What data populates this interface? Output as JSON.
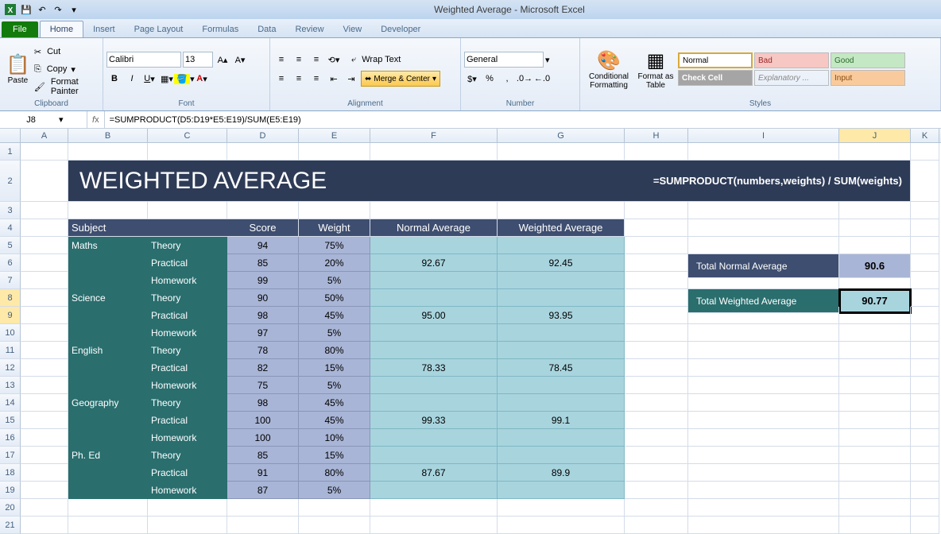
{
  "app": {
    "title": "Weighted Average - Microsoft Excel"
  },
  "tabs": {
    "file": "File",
    "home": "Home",
    "insert": "Insert",
    "page_layout": "Page Layout",
    "formulas": "Formulas",
    "data": "Data",
    "review": "Review",
    "view": "View",
    "developer": "Developer"
  },
  "ribbon": {
    "clipboard": {
      "label": "Clipboard",
      "paste": "Paste",
      "cut": "Cut",
      "copy": "Copy",
      "format_painter": "Format Painter"
    },
    "font": {
      "label": "Font",
      "name": "Calibri",
      "size": "13"
    },
    "alignment": {
      "label": "Alignment",
      "wrap": "Wrap Text",
      "merge": "Merge & Center"
    },
    "number": {
      "label": "Number",
      "format": "General"
    },
    "styles": {
      "label": "Styles",
      "cond_fmt": "Conditional Formatting",
      "fmt_table": "Format as Table",
      "normal": "Normal",
      "bad": "Bad",
      "good": "Good",
      "check": "Check Cell",
      "explan": "Explanatory ...",
      "input": "Input"
    }
  },
  "formula_bar": {
    "cell_ref": "J8",
    "formula": "=SUMPRODUCT(D5:D19*E5:E19)/SUM(E5:E19)"
  },
  "columns": [
    "A",
    "B",
    "C",
    "D",
    "E",
    "F",
    "G",
    "H",
    "I",
    "J",
    "K"
  ],
  "content": {
    "title": "WEIGHTED AVERAGE",
    "banner_formula": "=SUMPRODUCT(numbers,weights) / SUM(weights)",
    "headers": {
      "subject": "Subject",
      "score": "Score",
      "weight": "Weight",
      "navg": "Normal Average",
      "wavg": "Weighted Average"
    },
    "subjects": [
      {
        "name": "Maths",
        "rows": [
          {
            "type": "Theory",
            "score": 94,
            "weight": "75%"
          },
          {
            "type": "Practical",
            "score": 85,
            "weight": "20%"
          },
          {
            "type": "Homework",
            "score": 99,
            "weight": "5%"
          }
        ],
        "navg": "92.67",
        "wavg": "92.45"
      },
      {
        "name": "Science",
        "rows": [
          {
            "type": "Theory",
            "score": 90,
            "weight": "50%"
          },
          {
            "type": "Practical",
            "score": 98,
            "weight": "45%"
          },
          {
            "type": "Homework",
            "score": 97,
            "weight": "5%"
          }
        ],
        "navg": "95.00",
        "wavg": "93.95"
      },
      {
        "name": "English",
        "rows": [
          {
            "type": "Theory",
            "score": 78,
            "weight": "80%"
          },
          {
            "type": "Practical",
            "score": 82,
            "weight": "15%"
          },
          {
            "type": "Homework",
            "score": 75,
            "weight": "5%"
          }
        ],
        "navg": "78.33",
        "wavg": "78.45"
      },
      {
        "name": "Geography",
        "rows": [
          {
            "type": "Theory",
            "score": 98,
            "weight": "45%"
          },
          {
            "type": "Practical",
            "score": 100,
            "weight": "45%"
          },
          {
            "type": "Homework",
            "score": 100,
            "weight": "10%"
          }
        ],
        "navg": "99.33",
        "wavg": "99.1"
      },
      {
        "name": "Ph. Ed",
        "rows": [
          {
            "type": "Theory",
            "score": 85,
            "weight": "15%"
          },
          {
            "type": "Practical",
            "score": 91,
            "weight": "80%"
          },
          {
            "type": "Homework",
            "score": 87,
            "weight": "5%"
          }
        ],
        "navg": "87.67",
        "wavg": "89.9"
      }
    ],
    "totals": {
      "navg_label": "Total Normal Average",
      "navg_value": "90.6",
      "wavg_label": "Total Weighted Average",
      "wavg_value": "90.77"
    },
    "colors": {
      "banner_bg": "#2e3b57",
      "header_bg": "#3e4e70",
      "subject_bg": "#2a6e6e",
      "score_bg": "#a9b5d6",
      "avg_bg": "#a8d4de"
    }
  }
}
